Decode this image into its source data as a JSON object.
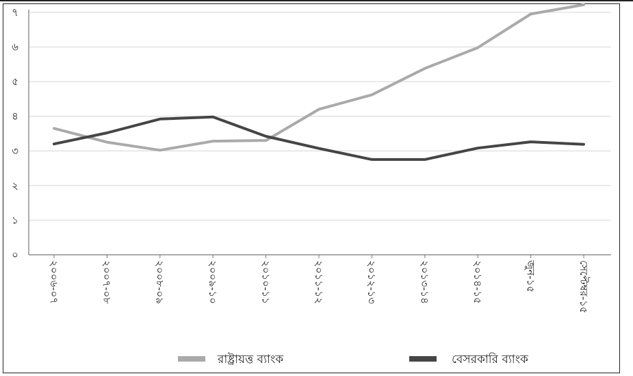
{
  "chart_data": {
    "type": "line",
    "title": "",
    "xlabel": "",
    "ylabel": "",
    "categories": [
      "২০০৬-০৭",
      "২০০৭-০৮",
      "২০০৮-০৯",
      "২০০৯-১০",
      "২০১০-১১",
      "২০১১-১২",
      "২০১২-১৩",
      "২০১৩-১৪",
      "২০১৪-১৫",
      "জুন-১৫",
      "সেপ্টেম্বর-১৫"
    ],
    "y_tick_labels": [
      "০",
      "১",
      "২",
      "৩",
      "৪",
      "৫",
      "৬",
      "৭"
    ],
    "ylim": [
      0,
      7
    ],
    "grid": true,
    "legend_position": "bottom",
    "series": [
      {
        "name": "রাষ্ট্রায়ত্ত ব্যাংক",
        "color": "#aaaaaa",
        "values": [
          3.65,
          3.25,
          3.02,
          3.28,
          3.3,
          4.2,
          4.62,
          5.38,
          5.98,
          6.95,
          7.22
        ]
      },
      {
        "name": "বেসরকারি ব্যাংক",
        "color": "#454545",
        "values": [
          3.2,
          3.52,
          3.92,
          3.98,
          3.42,
          3.07,
          2.75,
          2.75,
          3.08,
          3.26,
          3.19
        ]
      }
    ]
  }
}
